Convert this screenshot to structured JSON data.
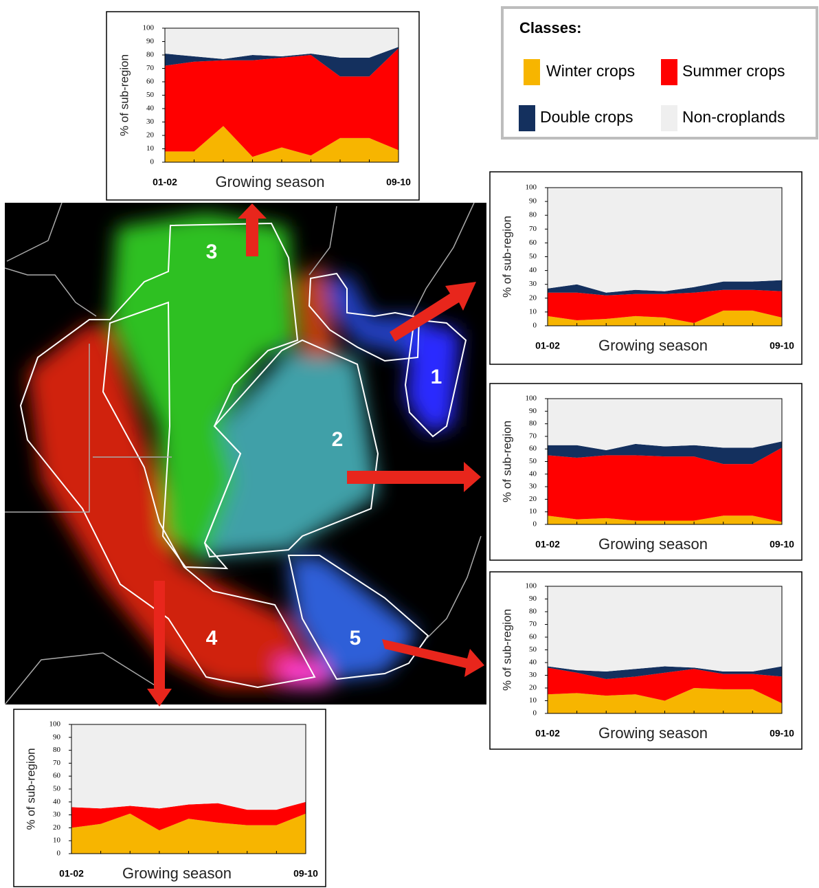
{
  "chart_data": [
    {
      "type": "area",
      "x_label": "Growing season",
      "y_label": "% of sub-region",
      "categories": [
        "01-02",
        null,
        null,
        null,
        null,
        null,
        null,
        null,
        "09-10"
      ],
      "ylim": [
        0,
        100
      ],
      "yticks": [
        0,
        10,
        20,
        30,
        40,
        50,
        60,
        70,
        80,
        90,
        100
      ],
      "series": [
        {
          "name": "Winter crops",
          "color": "#f7b500",
          "values": [
            8,
            8,
            27,
            4,
            11,
            5,
            18,
            18,
            9
          ]
        },
        {
          "name": "Summer crops",
          "color": "#ff0000",
          "values": [
            64,
            67,
            49,
            72,
            67,
            75,
            46,
            46,
            76
          ]
        },
        {
          "name": "Double crops",
          "color": "#14305e",
          "values": [
            9,
            4,
            1,
            4,
            1,
            1,
            14,
            14,
            1
          ]
        },
        {
          "name": "Non-croplands",
          "color": "#efefef",
          "values": [
            19,
            21,
            23,
            20,
            21,
            19,
            22,
            22,
            14
          ]
        }
      ]
    },
    {
      "type": "area",
      "x_label": "Growing season",
      "y_label": "% of sub-region",
      "categories": [
        "01-02",
        null,
        null,
        null,
        null,
        null,
        null,
        null,
        "09-10"
      ],
      "ylim": [
        0,
        100
      ],
      "yticks": [
        0,
        10,
        20,
        30,
        40,
        50,
        60,
        70,
        80,
        90,
        100
      ],
      "series": [
        {
          "name": "Winter crops",
          "color": "#f7b500",
          "values": [
            7,
            4,
            5,
            7,
            6,
            2,
            11,
            11,
            6
          ]
        },
        {
          "name": "Summer crops",
          "color": "#ff0000",
          "values": [
            17,
            20,
            17,
            16,
            17,
            22,
            15,
            15,
            19
          ]
        },
        {
          "name": "Double crops",
          "color": "#14305e",
          "values": [
            3,
            6,
            2,
            3,
            2,
            4,
            6,
            6,
            8
          ]
        },
        {
          "name": "Non-croplands",
          "color": "#efefef",
          "values": [
            73,
            70,
            76,
            74,
            75,
            72,
            68,
            68,
            67
          ]
        }
      ]
    },
    {
      "type": "area",
      "x_label": "Growing season",
      "y_label": "% of sub-region",
      "categories": [
        "01-02",
        null,
        null,
        null,
        null,
        null,
        null,
        null,
        "09-10"
      ],
      "ylim": [
        0,
        100
      ],
      "yticks": [
        0,
        10,
        20,
        30,
        40,
        50,
        60,
        70,
        80,
        90,
        100
      ],
      "series": [
        {
          "name": "Winter crops",
          "color": "#f7b500",
          "values": [
            7,
            4,
            5,
            3,
            3,
            3,
            7,
            7,
            2
          ]
        },
        {
          "name": "Summer crops",
          "color": "#ff0000",
          "values": [
            48,
            49,
            50,
            52,
            51,
            51,
            41,
            41,
            59
          ]
        },
        {
          "name": "Double crops",
          "color": "#14305e",
          "values": [
            8,
            10,
            4,
            9,
            8,
            9,
            13,
            13,
            5
          ]
        },
        {
          "name": "Non-croplands",
          "color": "#efefef",
          "values": [
            37,
            37,
            41,
            36,
            38,
            37,
            39,
            39,
            34
          ]
        }
      ]
    },
    {
      "type": "area",
      "x_label": "Growing season",
      "y_label": "% of sub-region",
      "categories": [
        "01-02",
        null,
        null,
        null,
        null,
        null,
        null,
        null,
        "09-10"
      ],
      "ylim": [
        0,
        100
      ],
      "yticks": [
        0,
        10,
        20,
        30,
        40,
        50,
        60,
        70,
        80,
        90,
        100
      ],
      "series": [
        {
          "name": "Winter crops",
          "color": "#f7b500",
          "values": [
            15,
            16,
            14,
            15,
            10,
            20,
            19,
            19,
            8
          ]
        },
        {
          "name": "Summer crops",
          "color": "#ff0000",
          "values": [
            21,
            16,
            13,
            14,
            22,
            15,
            12,
            12,
            21
          ]
        },
        {
          "name": "Double crops",
          "color": "#14305e",
          "values": [
            1,
            2,
            6,
            6,
            5,
            1,
            2,
            2,
            8
          ]
        },
        {
          "name": "Non-croplands",
          "color": "#efefef",
          "values": [
            63,
            66,
            67,
            65,
            63,
            64,
            67,
            67,
            63
          ]
        }
      ]
    },
    {
      "type": "area",
      "x_label": "Growing season",
      "y_label": "% of sub-region",
      "categories": [
        "01-02",
        null,
        null,
        null,
        null,
        null,
        null,
        null,
        "09-10"
      ],
      "ylim": [
        0,
        100
      ],
      "yticks": [
        0,
        10,
        20,
        30,
        40,
        50,
        60,
        70,
        80,
        90,
        100
      ],
      "series": [
        {
          "name": "Winter crops",
          "color": "#f7b500",
          "values": [
            20,
            23,
            31,
            18,
            27,
            24,
            22,
            22,
            31
          ]
        },
        {
          "name": "Summer crops",
          "color": "#ff0000",
          "values": [
            16,
            12,
            6,
            17,
            11,
            15,
            12,
            12,
            9
          ]
        },
        {
          "name": "Double crops",
          "color": "#14305e",
          "values": [
            0,
            0,
            0,
            0,
            0,
            0,
            0,
            0,
            0
          ]
        },
        {
          "name": "Non-croplands",
          "color": "#efefef",
          "values": [
            64,
            65,
            63,
            65,
            62,
            61,
            66,
            66,
            60
          ]
        }
      ]
    }
  ],
  "legend": {
    "title": "Classes:"
  },
  "map": {
    "region_labels": [
      "3",
      "1",
      "2",
      "5",
      "4"
    ]
  }
}
